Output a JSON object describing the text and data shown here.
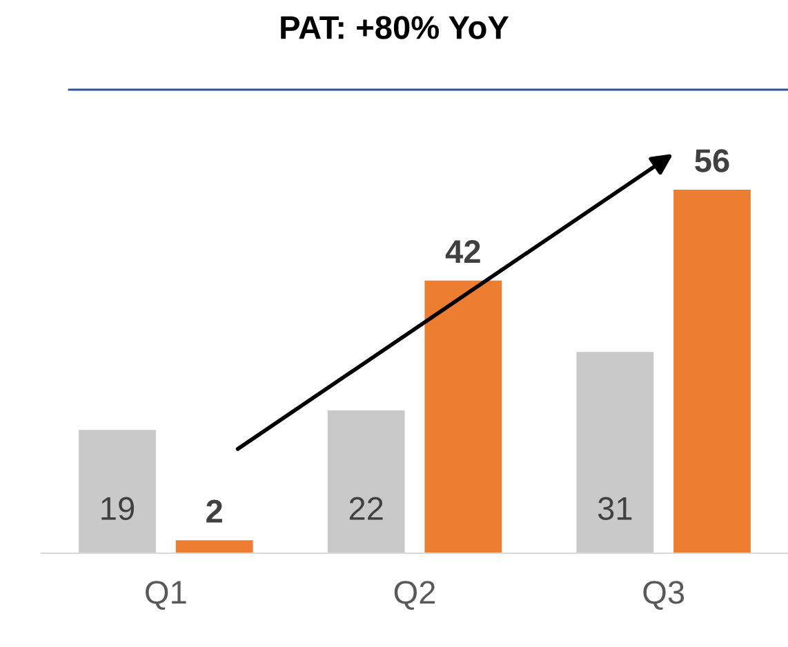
{
  "chart_data": {
    "type": "bar",
    "title": "PAT: +80% YoY",
    "categories": [
      "Q1",
      "Q2",
      "Q3"
    ],
    "series": [
      {
        "color": "#c9c9c9",
        "values": [
          19,
          22,
          31
        ]
      },
      {
        "color": "#ed7d31",
        "values": [
          2,
          42,
          56
        ]
      }
    ],
    "data_labels": true,
    "grid": false,
    "legend": false,
    "tick_labels": "x"
  }
}
